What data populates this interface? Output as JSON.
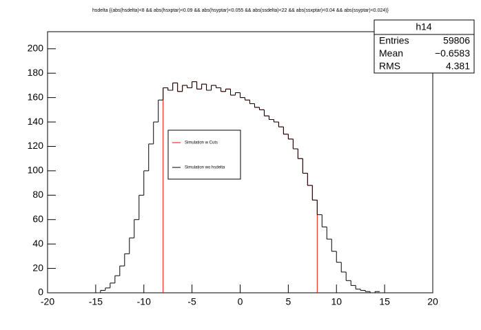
{
  "chart_data": {
    "type": "histogram",
    "title": "hsdelta {(abs(hsdelta)<8 && abs(hsxptar)<0.09 && abs(hsyptar)<0.055 && abs(ssdelta)<22 && abs(ssxptar)<0.04 && abs(ssyptar)<0.024)}",
    "bins": [
      -14.5,
      -14,
      -13.5,
      -13,
      -12.5,
      -12,
      -11.5,
      -11,
      -10.5,
      -10,
      -9.5,
      -9,
      -8.5,
      -8,
      -7.5,
      -7,
      -6.5,
      -6,
      -5.5,
      -5,
      -4.5,
      -4,
      -3.5,
      -3,
      -2.5,
      -2,
      -1.5,
      -1,
      -0.5,
      0,
      0.5,
      1,
      1.5,
      2,
      2.5,
      3,
      3.5,
      4,
      4.5,
      5,
      5.5,
      6,
      6.5,
      7,
      7.5,
      8,
      8.5,
      9,
      9.5,
      10,
      10.5,
      11,
      11.5,
      12,
      12.5,
      13,
      13.5,
      14,
      14.5
    ],
    "series": [
      {
        "name": "Simulation w Cuts",
        "color": "#ff0000",
        "values": [
          null,
          null,
          null,
          null,
          null,
          null,
          null,
          null,
          null,
          null,
          null,
          null,
          null,
          168,
          166,
          172,
          165,
          170,
          168,
          173,
          167,
          171,
          166,
          170,
          168,
          165,
          167,
          162,
          164,
          160,
          158,
          155,
          152,
          150,
          145,
          142,
          140,
          136,
          130,
          126,
          118,
          110,
          98,
          88,
          76,
          null,
          null,
          null,
          null,
          null,
          null,
          null,
          null,
          null,
          null,
          null,
          null,
          null
        ]
      },
      {
        "name": "Simulation wo hsdelta",
        "color": "#000000",
        "values": [
          2,
          4,
          8,
          14,
          22,
          32,
          45,
          60,
          80,
          100,
          122,
          140,
          158,
          168,
          166,
          172,
          165,
          170,
          168,
          173,
          167,
          171,
          166,
          170,
          168,
          165,
          167,
          162,
          164,
          160,
          158,
          155,
          152,
          150,
          145,
          142,
          140,
          136,
          130,
          126,
          118,
          110,
          98,
          88,
          76,
          64,
          54,
          44,
          34,
          25,
          17,
          10,
          6,
          3,
          2,
          1,
          0,
          1
        ]
      }
    ],
    "xlim": [
      -20,
      20
    ],
    "xticks": [
      -20,
      -15,
      -10,
      -5,
      0,
      5,
      10,
      15,
      20
    ],
    "ylim": [
      0,
      214
    ],
    "yticks": [
      0,
      20,
      40,
      60,
      80,
      100,
      120,
      140,
      160,
      180,
      200
    ],
    "stats": {
      "title": "h14",
      "rows": [
        [
          "Entries",
          "59806"
        ],
        [
          "Mean",
          "−0.6583"
        ],
        [
          "RMS",
          "4.381"
        ]
      ]
    }
  }
}
